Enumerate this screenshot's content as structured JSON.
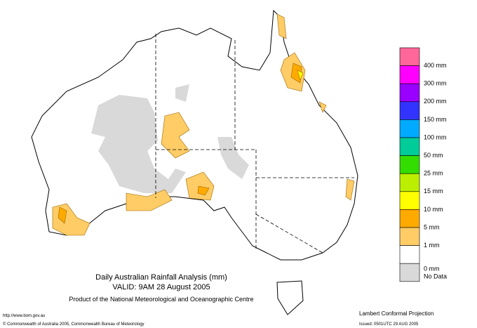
{
  "map": {
    "title": "Daily Australian Rainfall Analysis (mm)",
    "valid": "VALID: 9AM 28 August 2005",
    "product": "Product of the National Meteorological and Oceanographic Centre",
    "url": "http://www.bom.gov.au",
    "copyright": "© Commonwealth of Australia 2005, Commonwealth Bureau of Meteorology",
    "projection": "Lambert Conformal Projection",
    "issued": "Issued: 0501UTC 29 AUG 2005"
  },
  "legend": {
    "colors": [
      "#ff6699",
      "#ff00ff",
      "#9900ff",
      "#3333ff",
      "#00aaff",
      "#00cc99",
      "#33dd00",
      "#bbee00",
      "#ffff00",
      "#ffaa00",
      "#ffcc66",
      "#ffffff",
      "#d9d9d9"
    ],
    "labels": [
      "400 mm",
      "300 mm",
      "200 mm",
      "150 mm",
      "100 mm",
      "50 mm",
      "25 mm",
      "15 mm",
      "10 mm",
      "5 mm",
      "1 mm",
      "0 mm",
      "No Data"
    ]
  }
}
